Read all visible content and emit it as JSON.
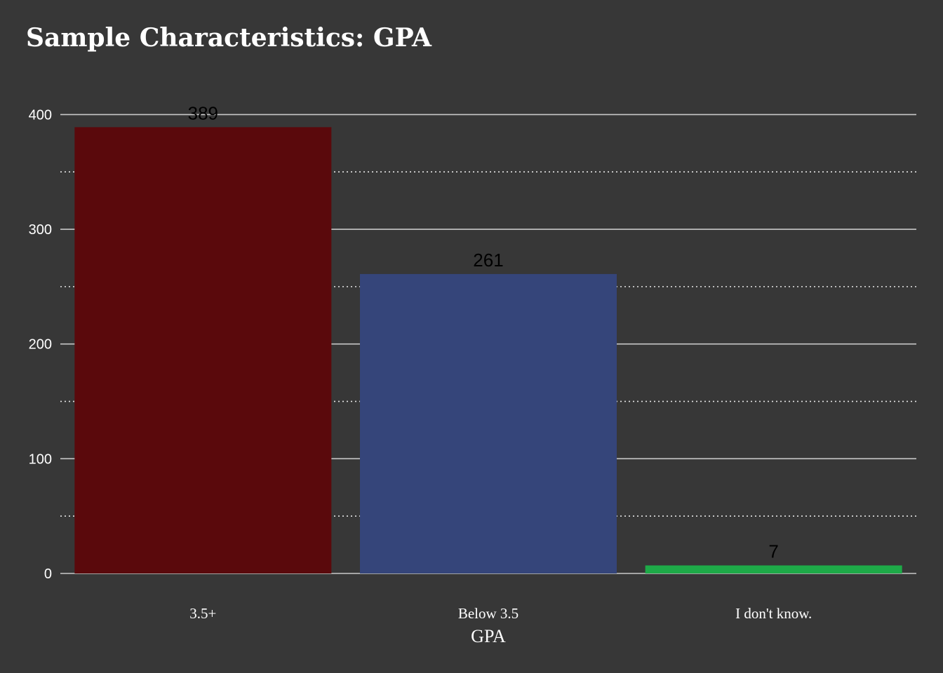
{
  "chart_data": {
    "type": "bar",
    "title": "Sample Characteristics: GPA",
    "xlabel": "GPA",
    "ylabel": "",
    "categories": [
      "3.5+",
      "Below 3.5",
      "I don't know."
    ],
    "values": [
      389,
      261,
      7
    ],
    "data_labels": [
      "389",
      "261",
      "7"
    ],
    "colors": [
      "#5a090c",
      "#35457a",
      "#1eaa48"
    ],
    "ylim": [
      0,
      420
    ],
    "yticks": [
      0,
      100,
      200,
      300,
      400
    ],
    "ytick_labels": [
      "0",
      "100",
      "200",
      "300",
      "400"
    ],
    "minor_gridlines": [
      50,
      150,
      250,
      350
    ],
    "grid": true,
    "legend": "none",
    "background_color": "#373737"
  }
}
